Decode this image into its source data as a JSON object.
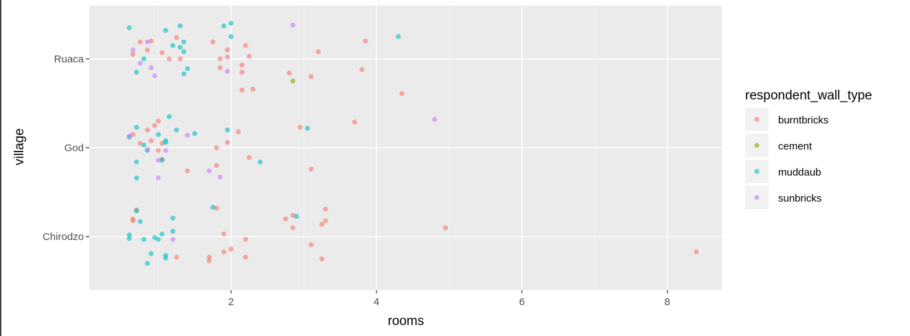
{
  "chart_data": {
    "type": "scatter",
    "title": "",
    "xlabel": "rooms",
    "ylabel": "village",
    "xlim": [
      0.05,
      8.75
    ],
    "ylim": [
      0.4,
      3.6
    ],
    "x_ticks": [
      2,
      4,
      6,
      8
    ],
    "x_tick_labels": [
      "2",
      "4",
      "6",
      "8"
    ],
    "categories": [
      "Chirodzo",
      "God",
      "Ruaca"
    ],
    "grid": true,
    "legend_position": "right",
    "legend_title": "respondent_wall_type",
    "colors": {
      "burntbricks": "#F8766D",
      "cement": "#7CAE00",
      "muddaub": "#00BFC4",
      "sunbricks": "#C77CFF"
    },
    "series": [
      {
        "name": "burntbricks",
        "points": [
          [
            0.9,
            3.2
          ],
          [
            0.75,
            3.19
          ],
          [
            0.65,
            3.05
          ],
          [
            0.85,
            3.1
          ],
          [
            1.05,
            3.07
          ],
          [
            1.15,
            3.0
          ],
          [
            1.25,
            3.24
          ],
          [
            1.3,
            3.0
          ],
          [
            1.75,
            3.19
          ],
          [
            1.85,
            3.0
          ],
          [
            1.95,
            3.1
          ],
          [
            1.95,
            3.02
          ],
          [
            2.2,
            3.15
          ],
          [
            2.15,
            2.93
          ],
          [
            2.25,
            3.03
          ],
          [
            1.85,
            2.9
          ],
          [
            2.15,
            2.85
          ],
          [
            2.15,
            2.65
          ],
          [
            2.3,
            2.66
          ],
          [
            2.8,
            2.84
          ],
          [
            3.1,
            2.8
          ],
          [
            3.2,
            3.08
          ],
          [
            3.8,
            2.88
          ],
          [
            3.85,
            3.2
          ],
          [
            4.35,
            2.61
          ],
          [
            0.65,
            2.15
          ],
          [
            0.75,
            2.05
          ],
          [
            0.85,
            2.2
          ],
          [
            0.9,
            2.08
          ],
          [
            0.95,
            2.25
          ],
          [
            1.0,
            2.3
          ],
          [
            1.0,
            1.97
          ],
          [
            1.05,
            2.05
          ],
          [
            1.05,
            1.87
          ],
          [
            1.4,
            1.74
          ],
          [
            1.8,
            2.0
          ],
          [
            1.8,
            1.8
          ],
          [
            1.95,
            2.06
          ],
          [
            2.1,
            2.18
          ],
          [
            2.25,
            1.89
          ],
          [
            2.95,
            2.23
          ],
          [
            3.1,
            1.76
          ],
          [
            3.7,
            2.29
          ],
          [
            0.65,
            1.2
          ],
          [
            0.65,
            1.18
          ],
          [
            0.7,
            1.3
          ],
          [
            1.25,
            0.77
          ],
          [
            1.7,
            0.77
          ],
          [
            1.7,
            0.73
          ],
          [
            1.8,
            1.32
          ],
          [
            1.9,
            1.03
          ],
          [
            1.9,
            0.83
          ],
          [
            2.0,
            0.86
          ],
          [
            2.2,
            0.97
          ],
          [
            2.2,
            0.77
          ],
          [
            2.75,
            1.2
          ],
          [
            2.85,
            1.24
          ],
          [
            2.85,
            1.1
          ],
          [
            3.1,
            0.91
          ],
          [
            3.25,
            1.14
          ],
          [
            3.25,
            0.75
          ],
          [
            3.3,
            1.31
          ],
          [
            3.3,
            1.18
          ],
          [
            4.95,
            1.1
          ],
          [
            8.4,
            0.83
          ]
        ]
      },
      {
        "name": "cement",
        "points": [
          [
            2.85,
            2.75
          ]
        ]
      },
      {
        "name": "muddaub",
        "points": [
          [
            0.6,
            3.35
          ],
          [
            0.7,
            2.85
          ],
          [
            0.8,
            3.0
          ],
          [
            1.1,
            3.32
          ],
          [
            1.2,
            3.15
          ],
          [
            1.3,
            3.37
          ],
          [
            1.3,
            3.13
          ],
          [
            1.35,
            3.19
          ],
          [
            1.35,
            3.08
          ],
          [
            1.4,
            2.89
          ],
          [
            1.35,
            2.83
          ],
          [
            1.9,
            3.37
          ],
          [
            2.0,
            3.4
          ],
          [
            2.0,
            3.25
          ],
          [
            4.3,
            3.25
          ],
          [
            0.6,
            2.12
          ],
          [
            0.7,
            2.23
          ],
          [
            0.8,
            2.03
          ],
          [
            0.85,
            1.97
          ],
          [
            1.0,
            2.15
          ],
          [
            1.1,
            2.06
          ],
          [
            1.1,
            2.08
          ],
          [
            1.15,
            2.35
          ],
          [
            1.25,
            2.2
          ],
          [
            1.5,
            2.16
          ],
          [
            1.95,
            2.2
          ],
          [
            2.4,
            1.84
          ],
          [
            3.05,
            2.22
          ],
          [
            0.7,
            1.84
          ],
          [
            0.7,
            1.66
          ],
          [
            1.05,
            1.86
          ],
          [
            0.7,
            1.29
          ],
          [
            0.75,
            1.17
          ],
          [
            0.6,
            1.02
          ],
          [
            0.6,
            0.98
          ],
          [
            0.8,
            0.97
          ],
          [
            0.85,
            0.7
          ],
          [
            0.9,
            0.81
          ],
          [
            0.95,
            0.99
          ],
          [
            1.0,
            0.97
          ],
          [
            1.05,
            1.03
          ],
          [
            1.1,
            0.79
          ],
          [
            1.1,
            0.76
          ],
          [
            1.2,
            1.21
          ],
          [
            1.2,
            1.06
          ],
          [
            1.75,
            1.33
          ],
          [
            2.9,
            1.23
          ]
        ]
      },
      {
        "name": "sunbricks",
        "points": [
          [
            0.65,
            3.1
          ],
          [
            0.75,
            2.95
          ],
          [
            0.85,
            3.19
          ],
          [
            0.9,
            2.9
          ],
          [
            0.95,
            2.81
          ],
          [
            1.95,
            2.86
          ],
          [
            2.85,
            3.38
          ],
          [
            4.8,
            2.32
          ],
          [
            0.6,
            2.13
          ],
          [
            0.85,
            1.98
          ],
          [
            1.0,
            1.86
          ],
          [
            1.1,
            1.97
          ],
          [
            1.4,
            2.14
          ],
          [
            1.7,
            1.74
          ],
          [
            1.85,
            1.67
          ],
          [
            1.0,
            1.66
          ],
          [
            1.2,
            0.97
          ]
        ]
      }
    ]
  }
}
